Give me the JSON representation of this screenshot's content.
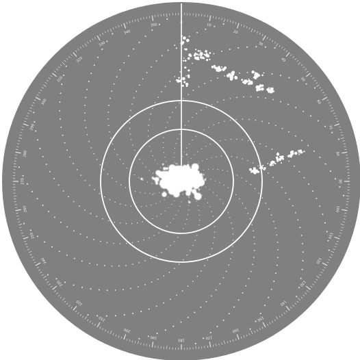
{
  "display": {
    "type": "radar-ppi",
    "colors": {
      "background": "#ffffff",
      "scope_face": "#808080",
      "trace": "#ffffff"
    }
  },
  "bezel": {
    "visible_labels": [
      "0",
      "10",
      "20",
      "30",
      "40",
      "50",
      "60",
      "70",
      "80",
      "90",
      "100",
      "110",
      "120",
      "130",
      "140",
      "150",
      "160",
      "170",
      "180",
      "190",
      "200",
      "210",
      "220",
      "230",
      "240",
      "250",
      "260",
      "270",
      "280",
      "290",
      "300",
      "310",
      "320",
      "330",
      "340",
      "350"
    ],
    "degree_marks": 360
  },
  "range_rings": {
    "count": 2
  },
  "heading_line": {
    "visible": true,
    "bearing_deg": 0
  },
  "sweep_trails": {
    "count": 18,
    "style": "dotted-spiral"
  },
  "echoes": {
    "ground_clutter": true,
    "contact_groups": [
      "north",
      "northeast",
      "east"
    ]
  }
}
